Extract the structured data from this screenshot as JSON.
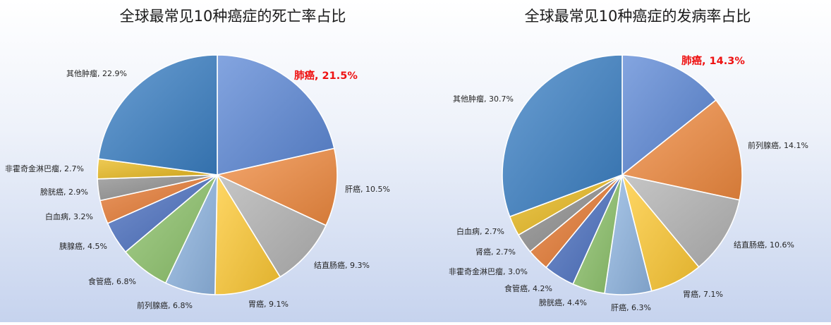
{
  "chart_data": [
    {
      "type": "pie",
      "title": "全球最常见10种癌症的死亡率占比",
      "slices": [
        {
          "name": "肺癌",
          "value": 21.5,
          "label": "肺癌, 21.5%",
          "highlight": true,
          "color": "#5b87d6"
        },
        {
          "name": "肝癌",
          "value": 10.5,
          "label": "肝癌, 10.5%",
          "highlight": false,
          "color": "#f08a3e"
        },
        {
          "name": "结直肠癌",
          "value": 9.3,
          "label": "结直肠癌, 9.3%",
          "highlight": false,
          "color": "#b3b3b3"
        },
        {
          "name": "胃癌",
          "value": 9.1,
          "label": "胃癌, 9.1%",
          "highlight": false,
          "color": "#ffc933"
        },
        {
          "name": "前列腺癌",
          "value": 6.8,
          "label": "前列腺癌, 6.8%",
          "highlight": false,
          "color": "#8fb6e2"
        },
        {
          "name": "食管癌",
          "value": 6.8,
          "label": "食管癌, 6.8%",
          "highlight": false,
          "color": "#8cc26a"
        },
        {
          "name": "胰腺癌",
          "value": 4.5,
          "label": "胰腺癌, 4.5%",
          "highlight": false,
          "color": "#4a6fc0"
        },
        {
          "name": "白血病",
          "value": 3.2,
          "label": "白血病, 3.2%",
          "highlight": false,
          "color": "#e67830"
        },
        {
          "name": "膀胱癌",
          "value": 2.9,
          "label": "膀胱癌, 2.9%",
          "highlight": false,
          "color": "#8e8e8e"
        },
        {
          "name": "非霍奇金淋巴瘤",
          "value": 2.7,
          "label": "非霍奇金淋巴瘤, 2.7%",
          "highlight": false,
          "color": "#e8b81c"
        },
        {
          "name": "其他肿瘤",
          "value": 22.9,
          "label": "其他肿瘤, 22.9%",
          "highlight": false,
          "color": "#3a7fc4"
        }
      ]
    },
    {
      "type": "pie",
      "title": "全球最常见10种癌症的发病率占比",
      "slices": [
        {
          "name": "肺癌",
          "value": 14.3,
          "label": "肺癌, 14.3%",
          "highlight": true,
          "color": "#5b87d6"
        },
        {
          "name": "前列腺癌",
          "value": 14.1,
          "label": "前列腺癌, 14.1%",
          "highlight": false,
          "color": "#f08a3e"
        },
        {
          "name": "结直肠癌",
          "value": 10.6,
          "label": "结直肠癌, 10.6%",
          "highlight": false,
          "color": "#b3b3b3"
        },
        {
          "name": "胃癌",
          "value": 7.1,
          "label": "胃癌, 7.1%",
          "highlight": false,
          "color": "#ffc933"
        },
        {
          "name": "肝癌",
          "value": 6.3,
          "label": "肝癌, 6.3%",
          "highlight": false,
          "color": "#8fb6e2"
        },
        {
          "name": "膀胱癌",
          "value": 4.4,
          "label": "膀胱癌, 4.4%",
          "highlight": false,
          "color": "#8cc26a"
        },
        {
          "name": "食管癌",
          "value": 4.2,
          "label": "食管癌, 4.2%",
          "highlight": false,
          "color": "#4a6fc0"
        },
        {
          "name": "非霍奇金淋巴瘤",
          "value": 3.0,
          "label": "非霍奇金淋巴瘤, 3.0%",
          "highlight": false,
          "color": "#e67830"
        },
        {
          "name": "肾癌",
          "value": 2.7,
          "label": "肾癌, 2.7%",
          "highlight": false,
          "color": "#8e8e8e"
        },
        {
          "name": "白血病",
          "value": 2.7,
          "label": "白血病, 2.7%",
          "highlight": false,
          "color": "#e8b81c"
        },
        {
          "name": "其他肿瘤",
          "value": 30.7,
          "label": "其他肿瘤, 30.7%",
          "highlight": false,
          "color": "#3a7fc4"
        }
      ]
    }
  ]
}
